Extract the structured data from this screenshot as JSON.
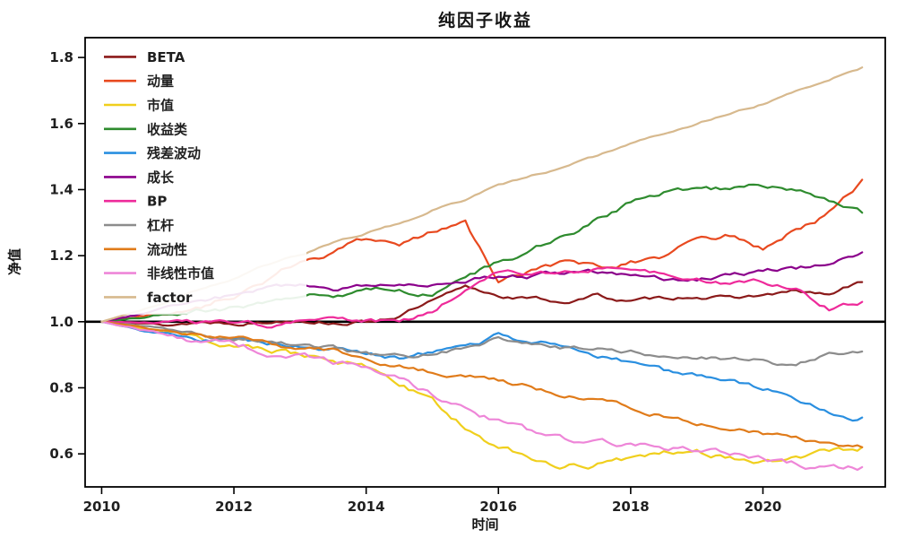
{
  "chart_data": {
    "type": "line",
    "title": "纯因子收益",
    "xlabel": "时间",
    "ylabel": "净值",
    "grid": false,
    "legend_position": "upper left",
    "xlim": [
      2009.75,
      2021.85
    ],
    "ylim": [
      0.5,
      1.86
    ],
    "xticks": [
      2010,
      2012,
      2014,
      2016,
      2018,
      2020
    ],
    "yticks": [
      0.6,
      0.8,
      1.0,
      1.2,
      1.4,
      1.6,
      1.8
    ],
    "baseline": 1.0,
    "x": [
      2010.0,
      2010.5,
      2011.0,
      2011.5,
      2012.0,
      2012.5,
      2013.0,
      2013.5,
      2014.0,
      2014.5,
      2015.0,
      2015.5,
      2016.0,
      2016.5,
      2017.0,
      2017.5,
      2018.0,
      2018.5,
      2019.0,
      2019.5,
      2020.0,
      2020.5,
      2021.0,
      2021.5
    ],
    "series": [
      {
        "name": "BETA",
        "color": "#8b1a1a",
        "noise": 0.008,
        "values": [
          1.0,
          1.0,
          0.99,
          1.0,
          1.0,
          1.0,
          1.01,
          1.0,
          1.0,
          1.02,
          1.06,
          1.1,
          1.08,
          1.07,
          1.06,
          1.08,
          1.06,
          1.07,
          1.08,
          1.07,
          1.08,
          1.09,
          1.08,
          1.12
        ]
      },
      {
        "name": "动量",
        "color": "#e8491f",
        "noise": 0.011,
        "values": [
          1.0,
          1.01,
          1.03,
          1.05,
          1.08,
          1.13,
          1.18,
          1.21,
          1.25,
          1.22,
          1.27,
          1.29,
          1.12,
          1.15,
          1.17,
          1.16,
          1.18,
          1.2,
          1.24,
          1.26,
          1.22,
          1.28,
          1.33,
          1.43
        ]
      },
      {
        "name": "市值",
        "color": "#f0cf1d",
        "noise": 0.012,
        "values": [
          1.0,
          0.98,
          0.96,
          0.95,
          0.93,
          0.92,
          0.9,
          0.88,
          0.86,
          0.81,
          0.76,
          0.68,
          0.62,
          0.58,
          0.56,
          0.57,
          0.58,
          0.6,
          0.6,
          0.59,
          0.58,
          0.59,
          0.61,
          0.62
        ]
      },
      {
        "name": "收益类",
        "color": "#2e8b2e",
        "noise": 0.01,
        "values": [
          1.0,
          1.01,
          1.02,
          1.03,
          1.04,
          1.06,
          1.09,
          1.08,
          1.1,
          1.1,
          1.08,
          1.13,
          1.18,
          1.22,
          1.26,
          1.31,
          1.36,
          1.39,
          1.4,
          1.4,
          1.41,
          1.4,
          1.37,
          1.33
        ]
      },
      {
        "name": "残差波动",
        "color": "#2a8fe0",
        "noise": 0.01,
        "values": [
          1.0,
          0.98,
          0.96,
          0.95,
          0.94,
          0.93,
          0.93,
          0.92,
          0.9,
          0.89,
          0.91,
          0.93,
          0.96,
          0.94,
          0.93,
          0.9,
          0.88,
          0.85,
          0.84,
          0.83,
          0.8,
          0.77,
          0.73,
          0.71
        ]
      },
      {
        "name": "成长",
        "color": "#8b008b",
        "noise": 0.009,
        "values": [
          1.0,
          1.02,
          1.04,
          1.06,
          1.08,
          1.1,
          1.11,
          1.1,
          1.11,
          1.11,
          1.12,
          1.13,
          1.14,
          1.14,
          1.15,
          1.15,
          1.14,
          1.13,
          1.13,
          1.14,
          1.15,
          1.16,
          1.18,
          1.21
        ]
      },
      {
        "name": "BP",
        "color": "#ee2a9a",
        "noise": 0.009,
        "values": [
          1.0,
          1.0,
          1.0,
          1.0,
          1.0,
          0.99,
          1.0,
          1.0,
          1.0,
          1.0,
          1.03,
          1.1,
          1.15,
          1.15,
          1.15,
          1.16,
          1.15,
          1.14,
          1.13,
          1.12,
          1.12,
          1.1,
          1.04,
          1.06
        ]
      },
      {
        "name": "杠杆",
        "color": "#8c8c8c",
        "noise": 0.009,
        "values": [
          1.0,
          0.99,
          0.97,
          0.96,
          0.95,
          0.94,
          0.93,
          0.92,
          0.9,
          0.89,
          0.9,
          0.92,
          0.95,
          0.93,
          0.92,
          0.92,
          0.91,
          0.9,
          0.9,
          0.89,
          0.88,
          0.87,
          0.9,
          0.91
        ]
      },
      {
        "name": "流动性",
        "color": "#e07b1a",
        "noise": 0.009,
        "values": [
          1.0,
          0.99,
          0.97,
          0.96,
          0.95,
          0.94,
          0.92,
          0.91,
          0.89,
          0.87,
          0.85,
          0.84,
          0.82,
          0.8,
          0.78,
          0.76,
          0.74,
          0.72,
          0.7,
          0.68,
          0.66,
          0.65,
          0.63,
          0.62
        ]
      },
      {
        "name": "非线性市值",
        "color": "#ee86d8",
        "noise": 0.012,
        "values": [
          1.0,
          0.98,
          0.96,
          0.94,
          0.93,
          0.91,
          0.9,
          0.88,
          0.87,
          0.83,
          0.78,
          0.73,
          0.7,
          0.66,
          0.64,
          0.64,
          0.63,
          0.62,
          0.61,
          0.6,
          0.59,
          0.57,
          0.56,
          0.56
        ]
      },
      {
        "name": "factor",
        "color": "#d7b98e",
        "noise": 0.004,
        "values": [
          1.0,
          1.03,
          1.06,
          1.1,
          1.13,
          1.17,
          1.2,
          1.24,
          1.27,
          1.3,
          1.34,
          1.37,
          1.41,
          1.44,
          1.47,
          1.5,
          1.54,
          1.57,
          1.6,
          1.63,
          1.66,
          1.7,
          1.73,
          1.77
        ]
      }
    ]
  }
}
